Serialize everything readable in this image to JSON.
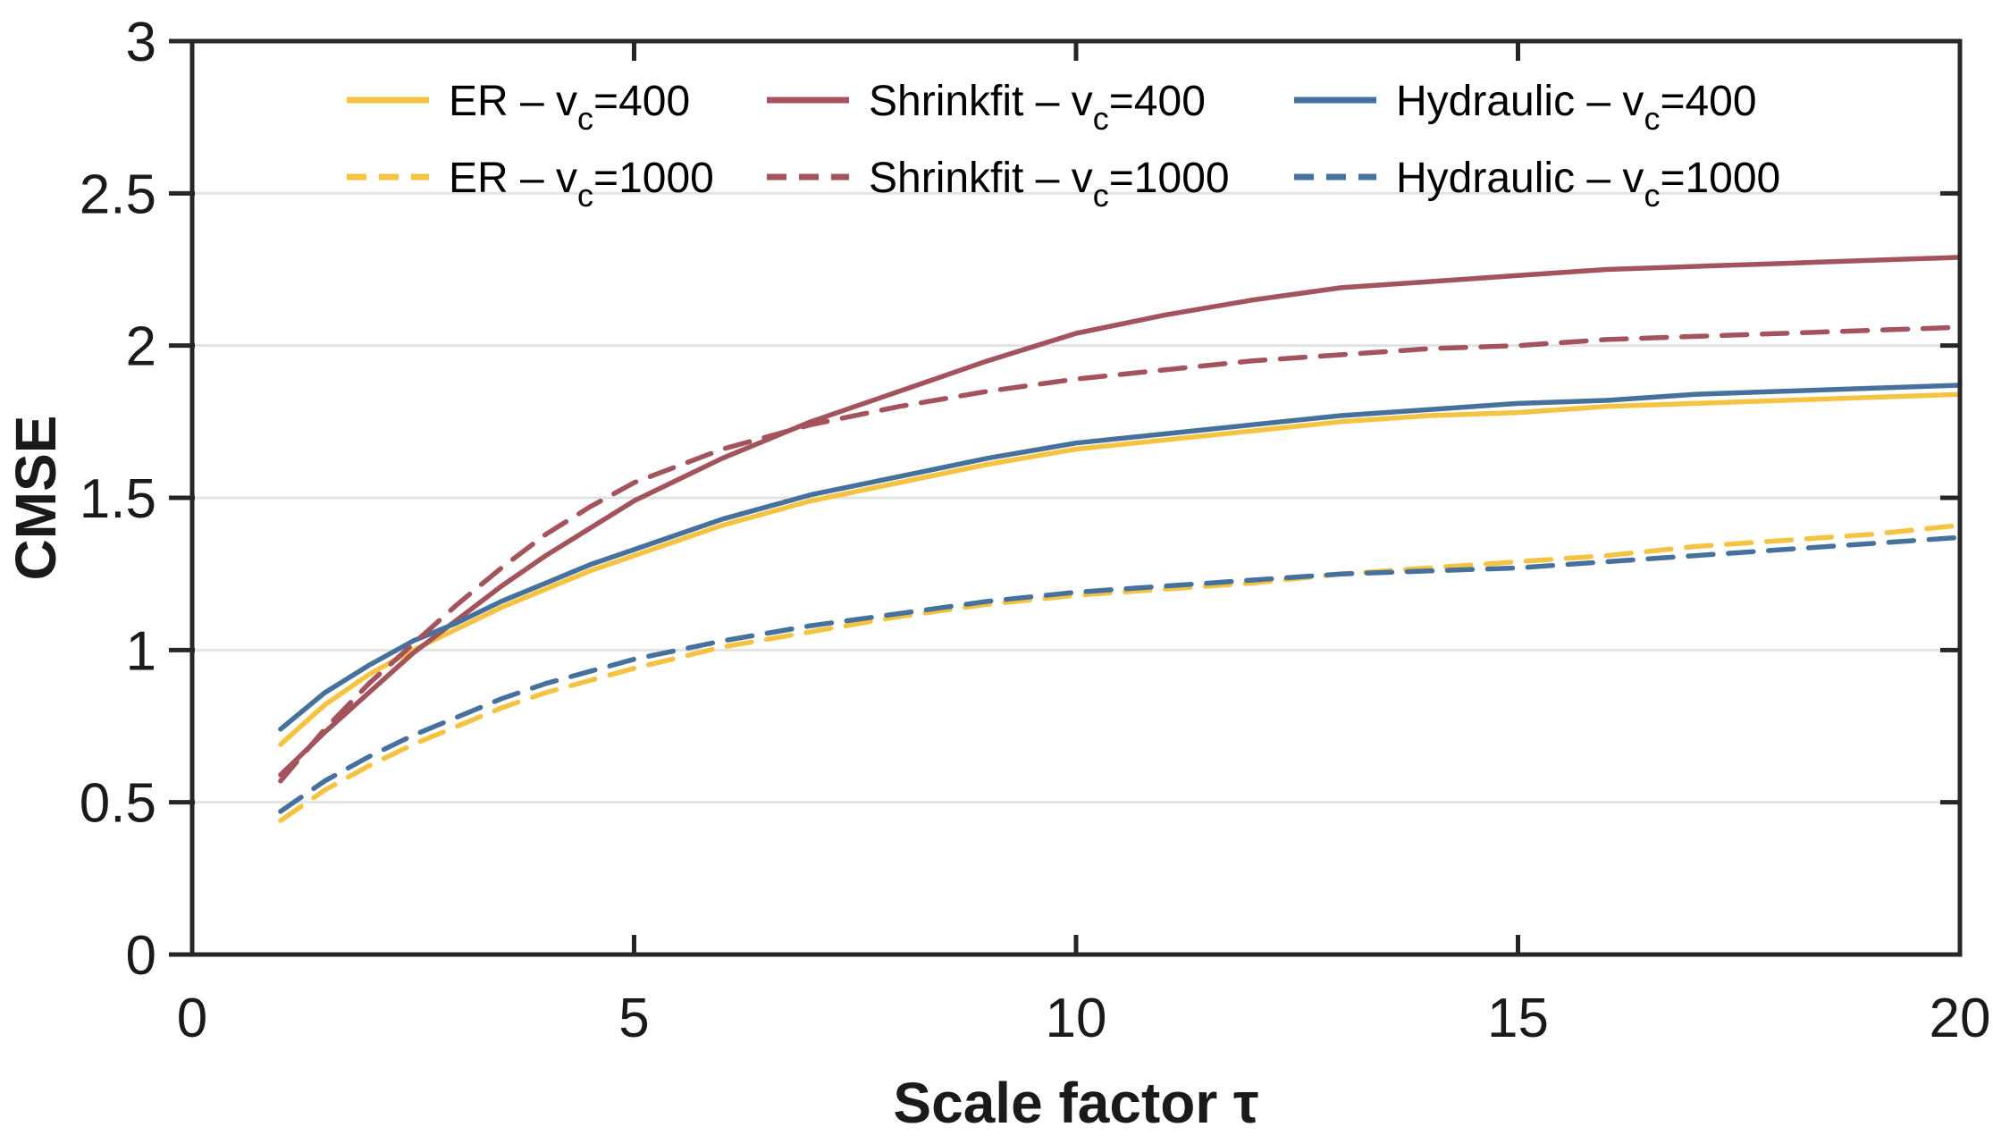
{
  "figure": {
    "description": "Line chart comparing CMSE versus scale factor for three tool-holder types at two cutting speeds"
  },
  "colors": {
    "er_yellow": "#F5C342",
    "shrinkfit_red": "#A3535B",
    "hydraulic_blue": "#46719C",
    "axis": "#262626",
    "grid": "#E3E3E3",
    "text": "#1A1A1A"
  },
  "chart_data": {
    "type": "line",
    "title": "",
    "xlabel": "Scale factor τ",
    "ylabel": "CMSE",
    "xlim": [
      0,
      20
    ],
    "ylim": [
      0,
      3
    ],
    "x_ticks": [
      0,
      5,
      10,
      15,
      20
    ],
    "y_ticks": [
      0,
      0.5,
      1,
      1.5,
      2,
      2.5,
      3
    ],
    "grid": "horizontal-only",
    "legend_position": "inside-top, two rows, three columns, no frame",
    "x": [
      1,
      1.5,
      2,
      2.5,
      3,
      3.5,
      4,
      4.5,
      5,
      6,
      7,
      8,
      9,
      10,
      11,
      12,
      13,
      14,
      15,
      16,
      17,
      18,
      19,
      20
    ],
    "series": [
      {
        "name": "ER - vc=400",
        "label_prefix": "ER – v",
        "label_sub": "c",
        "label_suffix": "=400",
        "color": "#F5C342",
        "line_style": "solid",
        "values": [
          0.69,
          0.82,
          0.92,
          1.0,
          1.07,
          1.14,
          1.2,
          1.26,
          1.31,
          1.41,
          1.49,
          1.55,
          1.61,
          1.66,
          1.69,
          1.72,
          1.75,
          1.77,
          1.78,
          1.8,
          1.81,
          1.82,
          1.83,
          1.84
        ]
      },
      {
        "name": "Shrinkfit - vc=400",
        "label_prefix": "Shrinkfit – v",
        "label_sub": "c",
        "label_suffix": "=400",
        "color": "#A3535B",
        "line_style": "solid",
        "values": [
          0.59,
          0.73,
          0.86,
          0.99,
          1.1,
          1.21,
          1.31,
          1.4,
          1.49,
          1.63,
          1.75,
          1.85,
          1.95,
          2.04,
          2.1,
          2.15,
          2.19,
          2.21,
          2.23,
          2.25,
          2.26,
          2.27,
          2.28,
          2.29
        ]
      },
      {
        "name": "Hydraulic - vc=400",
        "label_prefix": "Hydraulic – v",
        "label_sub": "c",
        "label_suffix": "=400",
        "color": "#46719C",
        "line_style": "solid",
        "values": [
          0.74,
          0.86,
          0.95,
          1.03,
          1.09,
          1.16,
          1.22,
          1.28,
          1.33,
          1.43,
          1.51,
          1.57,
          1.63,
          1.68,
          1.71,
          1.74,
          1.77,
          1.79,
          1.81,
          1.82,
          1.84,
          1.85,
          1.86,
          1.87
        ]
      },
      {
        "name": "ER - vc=1000",
        "label_prefix": "ER – v",
        "label_sub": "c",
        "label_suffix": "=1000",
        "color": "#F5C342",
        "line_style": "dashed",
        "values": [
          0.44,
          0.54,
          0.62,
          0.69,
          0.75,
          0.81,
          0.86,
          0.9,
          0.94,
          1.01,
          1.06,
          1.11,
          1.15,
          1.18,
          1.2,
          1.22,
          1.25,
          1.27,
          1.29,
          1.31,
          1.34,
          1.36,
          1.38,
          1.41
        ]
      },
      {
        "name": "Shrinkfit - vc=1000",
        "label_prefix": "Shrinkfit – v",
        "label_sub": "c",
        "label_suffix": "=1000",
        "color": "#A3535B",
        "line_style": "dashed",
        "values": [
          0.57,
          0.74,
          0.89,
          1.02,
          1.15,
          1.27,
          1.38,
          1.47,
          1.55,
          1.66,
          1.74,
          1.8,
          1.85,
          1.89,
          1.92,
          1.95,
          1.97,
          1.99,
          2.0,
          2.02,
          2.03,
          2.04,
          2.05,
          2.06
        ]
      },
      {
        "name": "Hydraulic - vc=1000",
        "label_prefix": "Hydraulic – v",
        "label_sub": "c",
        "label_suffix": "=1000",
        "color": "#46719C",
        "line_style": "dashed",
        "values": [
          0.47,
          0.57,
          0.65,
          0.72,
          0.78,
          0.84,
          0.89,
          0.93,
          0.97,
          1.03,
          1.08,
          1.12,
          1.16,
          1.19,
          1.21,
          1.23,
          1.25,
          1.26,
          1.27,
          1.29,
          1.31,
          1.33,
          1.35,
          1.37
        ]
      }
    ]
  }
}
